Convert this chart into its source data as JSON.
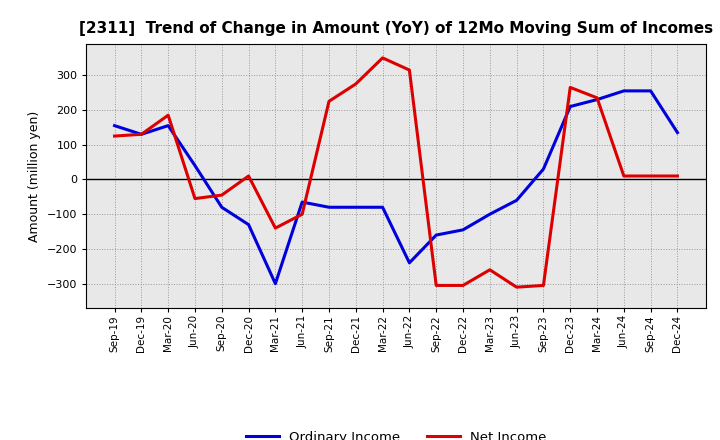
{
  "title": "[2311]  Trend of Change in Amount (YoY) of 12Mo Moving Sum of Incomes",
  "ylabel": "Amount (million yen)",
  "x_labels": [
    "Sep-19",
    "Dec-19",
    "Mar-20",
    "Jun-20",
    "Sep-20",
    "Dec-20",
    "Mar-21",
    "Jun-21",
    "Sep-21",
    "Dec-21",
    "Mar-22",
    "Jun-22",
    "Sep-22",
    "Dec-22",
    "Mar-23",
    "Jun-23",
    "Sep-23",
    "Dec-23",
    "Mar-24",
    "Jun-24",
    "Sep-24",
    "Dec-24"
  ],
  "ordinary_income": [
    155,
    130,
    155,
    40,
    -80,
    -130,
    -300,
    -65,
    -80,
    -80,
    -80,
    -240,
    -160,
    -145,
    -100,
    -60,
    30,
    210,
    230,
    255,
    255,
    135
  ],
  "net_income": [
    125,
    130,
    185,
    -55,
    -45,
    10,
    -140,
    -100,
    225,
    275,
    350,
    315,
    -305,
    -305,
    -260,
    -310,
    -305,
    265,
    235,
    10,
    10,
    10
  ],
  "ordinary_color": "#0000dd",
  "net_color": "#dd0000",
  "ylim_min": -370,
  "ylim_max": 390,
  "yticks": [
    -300,
    -200,
    -100,
    0,
    100,
    200,
    300
  ],
  "background_color": "#e8e8e8",
  "grid_color": "#999999",
  "line_width": 2.2,
  "legend_ordinary": "Ordinary Income",
  "legend_net": "Net Income",
  "title_fontsize": 11,
  "ylabel_fontsize": 9,
  "tick_fontsize": 8,
  "xtick_fontsize": 7.5
}
